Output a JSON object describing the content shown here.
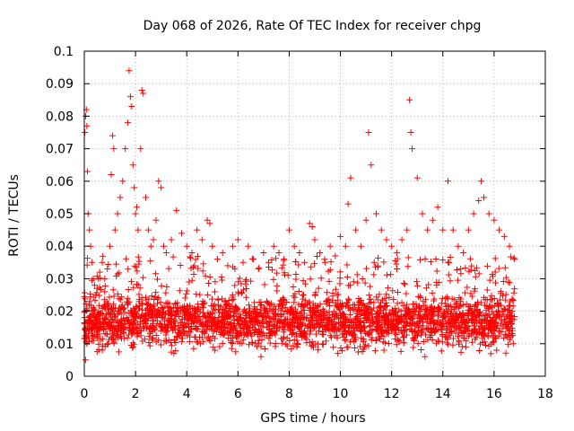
{
  "chart_data": {
    "type": "scatter",
    "title": "Day 068 of 2026, Rate Of TEC Index for receiver chpg",
    "xlabel": "GPS time / hours",
    "ylabel": "ROTI / TECUs",
    "xlim": [
      0,
      18
    ],
    "ylim": [
      0,
      0.1
    ],
    "x_ticks": [
      "0",
      "2",
      "4",
      "6",
      "8",
      "10",
      "12",
      "14",
      "16",
      "18"
    ],
    "y_ticks": [
      "0",
      "0.01",
      "0.02",
      "0.03",
      "0.04",
      "0.05",
      "0.06",
      "0.07",
      "0.08",
      "0.09",
      "0.1"
    ],
    "grid": true,
    "marker": "plus",
    "series": [
      {
        "name": "ROTI",
        "color": "#ff0000",
        "x": [
          0.02,
          0.05,
          0.08,
          0.1,
          0.12,
          0.15,
          0.2,
          0.25,
          0.3,
          0.35,
          0.4,
          0.45,
          0.5,
          0.55,
          0.6,
          0.7,
          0.8,
          0.9,
          1.0,
          1.05,
          1.1,
          1.15,
          1.2,
          1.3,
          1.4,
          1.5,
          1.6,
          1.7,
          1.75,
          1.8,
          1.85,
          1.9,
          1.95,
          2.0,
          2.05,
          2.1,
          2.2,
          2.25,
          2.3,
          2.4,
          2.5,
          2.6,
          2.7,
          2.8,
          2.9,
          3.0,
          3.1,
          3.2,
          3.4,
          3.6,
          3.8,
          4.0,
          4.2,
          4.4,
          4.6,
          4.8,
          4.9,
          5.0,
          5.2,
          5.4,
          5.6,
          5.8,
          6.0,
          6.2,
          6.4,
          6.6,
          6.8,
          7.0,
          7.2,
          7.4,
          7.6,
          7.8,
          8.0,
          8.2,
          8.4,
          8.6,
          8.8,
          8.9,
          9.0,
          9.2,
          9.4,
          9.6,
          9.8,
          10.0,
          10.2,
          10.3,
          10.4,
          10.6,
          10.8,
          11.0,
          11.1,
          11.2,
          11.4,
          11.6,
          11.8,
          12.0,
          12.2,
          12.4,
          12.6,
          12.7,
          12.75,
          12.8,
          13.0,
          13.2,
          13.4,
          13.6,
          13.8,
          14.0,
          14.2,
          14.4,
          14.6,
          14.8,
          15.0,
          15.2,
          15.4,
          15.5,
          15.6,
          15.8,
          16.0,
          16.2,
          16.4,
          16.6,
          16.8,
          0.1,
          0.6,
          1.3,
          2.2,
          3.3,
          4.5,
          5.5,
          6.5,
          7.5,
          8.5,
          9.5,
          10.5,
          11.5,
          12.5,
          13.5,
          14.5,
          15.5,
          16.5,
          0.3,
          1.7,
          2.9,
          4.3,
          5.7,
          7.1,
          8.7,
          10.1,
          11.3,
          12.9,
          14.1,
          15.3,
          16.7,
          0.7,
          1.9,
          3.5,
          5.1,
          6.9,
          8.3,
          9.9,
          11.7,
          13.3,
          14.9,
          16.1,
          0.05,
          16.75
        ],
        "y": [
          0.075,
          0.08,
          0.082,
          0.077,
          0.063,
          0.05,
          0.045,
          0.04,
          0.035,
          0.03,
          0.028,
          0.025,
          0.027,
          0.03,
          0.032,
          0.035,
          0.03,
          0.033,
          0.04,
          0.062,
          0.074,
          0.07,
          0.045,
          0.05,
          0.055,
          0.06,
          0.07,
          0.078,
          0.094,
          0.086,
          0.083,
          0.065,
          0.058,
          0.05,
          0.052,
          0.045,
          0.07,
          0.088,
          0.087,
          0.055,
          0.045,
          0.04,
          0.042,
          0.048,
          0.06,
          0.058,
          0.04,
          0.038,
          0.042,
          0.051,
          0.044,
          0.04,
          0.038,
          0.045,
          0.042,
          0.048,
          0.047,
          0.04,
          0.036,
          0.038,
          0.034,
          0.04,
          0.042,
          0.035,
          0.04,
          0.036,
          0.033,
          0.038,
          0.035,
          0.04,
          0.038,
          0.036,
          0.045,
          0.04,
          0.038,
          0.035,
          0.047,
          0.046,
          0.042,
          0.038,
          0.035,
          0.04,
          0.037,
          0.043,
          0.04,
          0.053,
          0.061,
          0.045,
          0.04,
          0.048,
          0.075,
          0.065,
          0.05,
          0.045,
          0.042,
          0.04,
          0.038,
          0.042,
          0.045,
          0.085,
          0.075,
          0.07,
          0.061,
          0.05,
          0.045,
          0.048,
          0.052,
          0.045,
          0.06,
          0.045,
          0.04,
          0.038,
          0.045,
          0.05,
          0.054,
          0.06,
          0.055,
          0.05,
          0.048,
          0.045,
          0.043,
          0.04,
          0.036,
          0.012,
          0.015,
          0.013,
          0.014,
          0.016,
          0.012,
          0.015,
          0.013,
          0.014,
          0.012,
          0.016,
          0.015,
          0.013,
          0.014,
          0.012,
          0.015,
          0.013,
          0.016,
          0.02,
          0.022,
          0.019,
          0.021,
          0.02,
          0.018,
          0.022,
          0.019,
          0.021,
          0.02,
          0.018,
          0.022,
          0.02,
          0.008,
          0.009,
          0.007,
          0.008,
          0.006,
          0.009,
          0.007,
          0.008,
          0.006,
          0.009,
          0.008,
          0.005,
          0.01
        ]
      }
    ],
    "dense_band": {
      "x_range": [
        0,
        16.8
      ],
      "y_range": [
        0.005,
        0.035
      ]
    }
  }
}
